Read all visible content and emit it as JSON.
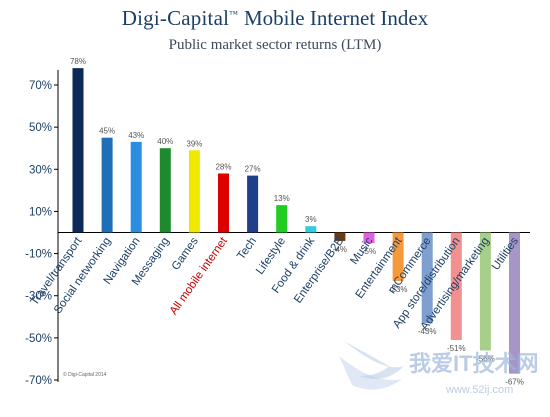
{
  "header": {
    "brand": "Digi-Capital",
    "trademark": "™",
    "index_name": "Mobile Internet Index",
    "subtitle": "Public market sector returns (LTM)"
  },
  "copyright": "© Digi-Capital 2014",
  "watermark": {
    "text": "我爱IT技术网",
    "url": "www.52ij.com"
  },
  "colors": {
    "axis": "#000000",
    "tick_text": "#1d3f66",
    "value_text": "#555555",
    "highlight_label": "#cc0000",
    "category_text": "#1d3f66"
  },
  "chart_data": {
    "type": "bar",
    "title": "Public market sector returns (LTM)",
    "xlabel": "",
    "ylabel": "",
    "ylim": [
      -70,
      80
    ],
    "yticks": [
      70,
      50,
      30,
      10,
      -10,
      -30,
      -50,
      -70
    ],
    "ytick_labels": [
      "70%",
      "50%",
      "30%",
      "10%",
      "-10%",
      "-30%",
      "-50%",
      "-70%"
    ],
    "grid": false,
    "legend": "none",
    "categories": [
      "Travel/transport",
      "Social networking",
      "Navigation",
      "Messaging",
      "Games",
      "All mobile internet",
      "Tech",
      "Lifestyle",
      "Food & drink",
      "Enterprise/B2B",
      "Music",
      "Entertainment",
      "mCommerce",
      "App store/distribution",
      "Advertising/marketing",
      "Utilities"
    ],
    "values": [
      78,
      45,
      43,
      40,
      39,
      28,
      27,
      13,
      3,
      -4,
      -5,
      -23,
      -43,
      -51,
      -56,
      -67
    ],
    "value_labels": [
      "78%",
      "45%",
      "43%",
      "40%",
      "39%",
      "28%",
      "27%",
      "13%",
      "3%",
      "-4%",
      "-5%",
      "-23%",
      "-43%",
      "-51%",
      "-56%",
      "-67%"
    ],
    "bar_colors": [
      "#0b2a5a",
      "#1f6fb8",
      "#2a8de0",
      "#1e8a2e",
      "#f0e800",
      "#dd0000",
      "#1f3f8a",
      "#22cc22",
      "#33ccdd",
      "#6b3b12",
      "#e060e0",
      "#f59a3a",
      "#7f9fd0",
      "#f29090",
      "#a7cf8a",
      "#a696c8"
    ],
    "highlight_category": "All mobile internet"
  }
}
